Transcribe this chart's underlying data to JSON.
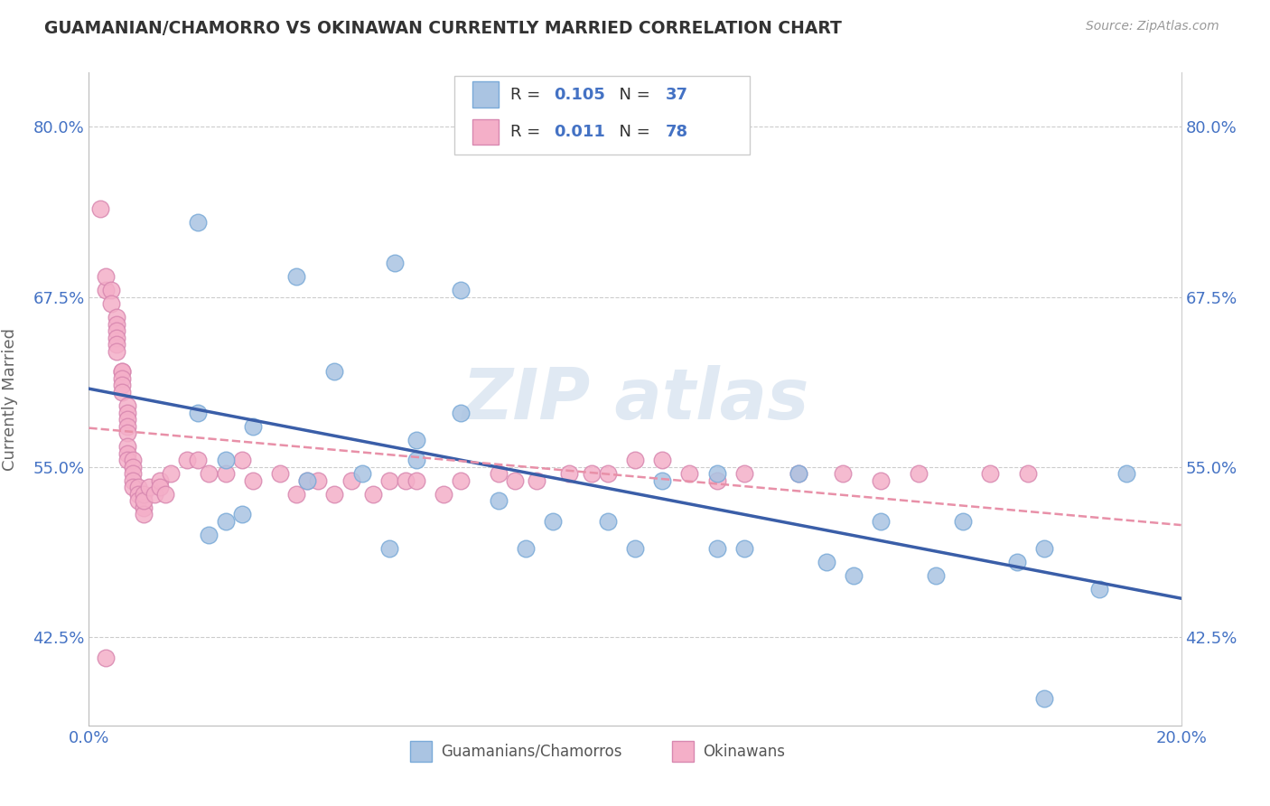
{
  "title": "GUAMANIAN/CHAMORRO VS OKINAWAN CURRENTLY MARRIED CORRELATION CHART",
  "source_text": "Source: ZipAtlas.com",
  "ylabel_text": "Currently Married",
  "xlim": [
    0.0,
    0.2
  ],
  "ylim": [
    0.36,
    0.84
  ],
  "yticks": [
    0.425,
    0.55,
    0.675,
    0.8
  ],
  "ytick_labels": [
    "42.5%",
    "55.0%",
    "67.5%",
    "80.0%"
  ],
  "xticks": [
    0.0,
    0.2
  ],
  "xtick_labels": [
    "0.0%",
    "20.0%"
  ],
  "legend_label1": "Guamanians/Chamorros",
  "legend_label2": "Okinawans",
  "color1": "#aac4e2",
  "color2": "#f4afc8",
  "line_color1": "#3a5ea8",
  "line_color2": "#e890a8",
  "blue_scatter_x": [
    0.02,
    0.038,
    0.056,
    0.068,
    0.045,
    0.02,
    0.025,
    0.03,
    0.022,
    0.025,
    0.028,
    0.04,
    0.05,
    0.06,
    0.06,
    0.055,
    0.08,
    0.068,
    0.075,
    0.085,
    0.095,
    0.105,
    0.1,
    0.115,
    0.115,
    0.12,
    0.13,
    0.135,
    0.14,
    0.145,
    0.155,
    0.16,
    0.17,
    0.175,
    0.185,
    0.19,
    0.175
  ],
  "blue_scatter_y": [
    0.73,
    0.69,
    0.7,
    0.68,
    0.62,
    0.59,
    0.555,
    0.58,
    0.5,
    0.51,
    0.515,
    0.54,
    0.545,
    0.555,
    0.57,
    0.49,
    0.49,
    0.59,
    0.525,
    0.51,
    0.51,
    0.54,
    0.49,
    0.545,
    0.49,
    0.49,
    0.545,
    0.48,
    0.47,
    0.51,
    0.47,
    0.51,
    0.48,
    0.49,
    0.46,
    0.545,
    0.38
  ],
  "pink_scatter_x": [
    0.002,
    0.003,
    0.003,
    0.004,
    0.004,
    0.005,
    0.005,
    0.005,
    0.005,
    0.005,
    0.005,
    0.006,
    0.006,
    0.006,
    0.006,
    0.006,
    0.007,
    0.007,
    0.007,
    0.007,
    0.007,
    0.007,
    0.007,
    0.007,
    0.008,
    0.008,
    0.008,
    0.008,
    0.008,
    0.009,
    0.009,
    0.009,
    0.01,
    0.01,
    0.01,
    0.01,
    0.011,
    0.012,
    0.013,
    0.013,
    0.014,
    0.015,
    0.018,
    0.02,
    0.022,
    0.025,
    0.028,
    0.03,
    0.035,
    0.038,
    0.04,
    0.042,
    0.045,
    0.048,
    0.052,
    0.055,
    0.058,
    0.06,
    0.065,
    0.068,
    0.075,
    0.078,
    0.082,
    0.088,
    0.092,
    0.095,
    0.1,
    0.105,
    0.11,
    0.115,
    0.12,
    0.13,
    0.138,
    0.145,
    0.152,
    0.165,
    0.172,
    0.003
  ],
  "pink_scatter_y": [
    0.74,
    0.68,
    0.69,
    0.68,
    0.67,
    0.66,
    0.655,
    0.65,
    0.645,
    0.64,
    0.635,
    0.62,
    0.62,
    0.615,
    0.61,
    0.605,
    0.595,
    0.59,
    0.585,
    0.58,
    0.575,
    0.565,
    0.56,
    0.555,
    0.555,
    0.55,
    0.545,
    0.54,
    0.535,
    0.535,
    0.53,
    0.525,
    0.52,
    0.515,
    0.53,
    0.525,
    0.535,
    0.53,
    0.54,
    0.535,
    0.53,
    0.545,
    0.555,
    0.555,
    0.545,
    0.545,
    0.555,
    0.54,
    0.545,
    0.53,
    0.54,
    0.54,
    0.53,
    0.54,
    0.53,
    0.54,
    0.54,
    0.54,
    0.53,
    0.54,
    0.545,
    0.54,
    0.54,
    0.545,
    0.545,
    0.545,
    0.555,
    0.555,
    0.545,
    0.54,
    0.545,
    0.545,
    0.545,
    0.54,
    0.545,
    0.545,
    0.545,
    0.41
  ]
}
